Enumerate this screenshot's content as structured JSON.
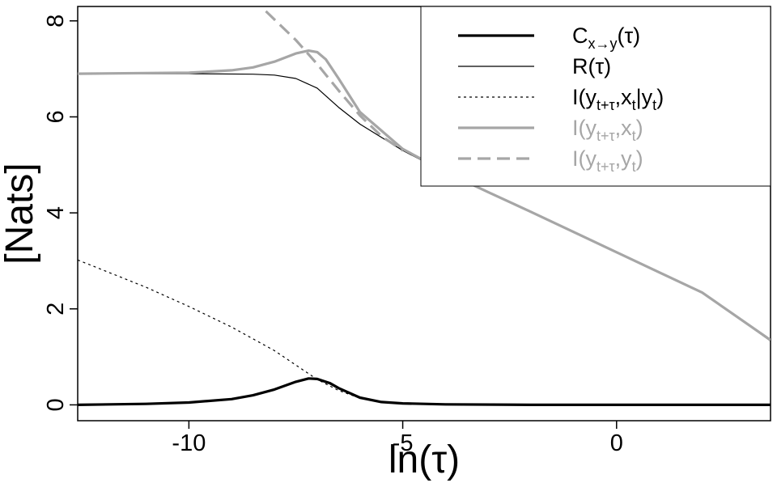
{
  "chart_data": {
    "type": "line",
    "xlabel": "ln(τ)",
    "ylabel": "[Nats]",
    "xlim": [
      -12.6,
      3.6
    ],
    "ylim": [
      -0.33,
      8.3
    ],
    "x_ticks": [
      -10,
      -5,
      0
    ],
    "x_tick_labels": [
      "-10",
      "-5",
      "0"
    ],
    "y_ticks": [
      0,
      2,
      4,
      6,
      8
    ],
    "y_tick_labels": [
      "0",
      "2",
      "4",
      "6",
      "8"
    ],
    "legend_position": "top-right",
    "series": [
      {
        "name": "C_x→y(τ)",
        "legend_main": "C",
        "legend_sub": "x→y",
        "legend_tail": "(τ)",
        "color": "#000000",
        "style": "solid",
        "weight": "thick",
        "x": [
          -12.6,
          -11,
          -10,
          -9,
          -8.5,
          -8,
          -7.5,
          -7.2,
          -7,
          -6.7,
          -6.5,
          -6,
          -5.5,
          -5,
          -4,
          -2,
          0,
          3.6
        ],
        "y": [
          0.0,
          0.02,
          0.05,
          0.12,
          0.2,
          0.32,
          0.48,
          0.55,
          0.54,
          0.45,
          0.35,
          0.15,
          0.06,
          0.03,
          0.01,
          0.0,
          0.0,
          0.0
        ]
      },
      {
        "name": "R(τ)",
        "legend_main": "R(τ)",
        "legend_sub": "",
        "legend_tail": "",
        "color": "#000000",
        "style": "solid",
        "weight": "thin",
        "x": [
          -12.6,
          -10,
          -8.5,
          -8,
          -7.5,
          -7,
          -6.5,
          -6,
          -5,
          -4,
          -3,
          -2,
          -1,
          0,
          1,
          2,
          3.6
        ],
        "y": [
          6.9,
          6.9,
          6.89,
          6.87,
          6.8,
          6.6,
          6.2,
          5.85,
          5.3,
          4.84,
          4.43,
          4.02,
          3.6,
          3.18,
          2.76,
          2.34,
          1.33
        ]
      },
      {
        "name": "I(y_t+τ,x_t|y_t)",
        "legend_main": "I(y",
        "legend_sub": "t+τ",
        "legend_tail": ",x|y)",
        "color": "#000000",
        "style": "dotted",
        "weight": "thin",
        "x": [
          -12.6,
          -11,
          -10,
          -9,
          -8,
          -7.5,
          -7,
          -6.5,
          -6,
          -5.5,
          -5,
          -4,
          -2,
          0,
          3.6
        ],
        "y": [
          3.02,
          2.45,
          2.05,
          1.62,
          1.13,
          0.83,
          0.53,
          0.3,
          0.14,
          0.05,
          0.02,
          0.0,
          0.0,
          0.0,
          0.0
        ]
      },
      {
        "name": "I(y_t+τ,x_t)",
        "legend_main": "I(y",
        "legend_sub": "t+τ",
        "legend_tail": ",x)",
        "color": "#a6a6a6",
        "style": "solid",
        "weight": "thick",
        "x": [
          -12.6,
          -10,
          -9,
          -8.5,
          -8,
          -7.5,
          -7.2,
          -7,
          -6.8,
          -6.5,
          -6,
          -5,
          -4,
          -3,
          -2,
          -1,
          0,
          1,
          2,
          3.6
        ],
        "y": [
          6.9,
          6.92,
          6.97,
          7.03,
          7.15,
          7.32,
          7.38,
          7.35,
          7.2,
          6.8,
          6.1,
          5.33,
          4.85,
          4.43,
          4.02,
          3.6,
          3.18,
          2.76,
          2.34,
          1.35
        ]
      },
      {
        "name": "I(y_t+τ,y_t)",
        "legend_main": "I(y",
        "legend_sub": "t+τ",
        "legend_tail": ",y)",
        "color": "#a6a6a6",
        "style": "dashed",
        "weight": "thick",
        "x": [
          -8.2,
          -7.5,
          -7,
          -6.5,
          -6,
          -5.5,
          -5
        ],
        "y": [
          8.2,
          7.6,
          7.1,
          6.55,
          6.03,
          5.6,
          5.3
        ]
      }
    ]
  }
}
